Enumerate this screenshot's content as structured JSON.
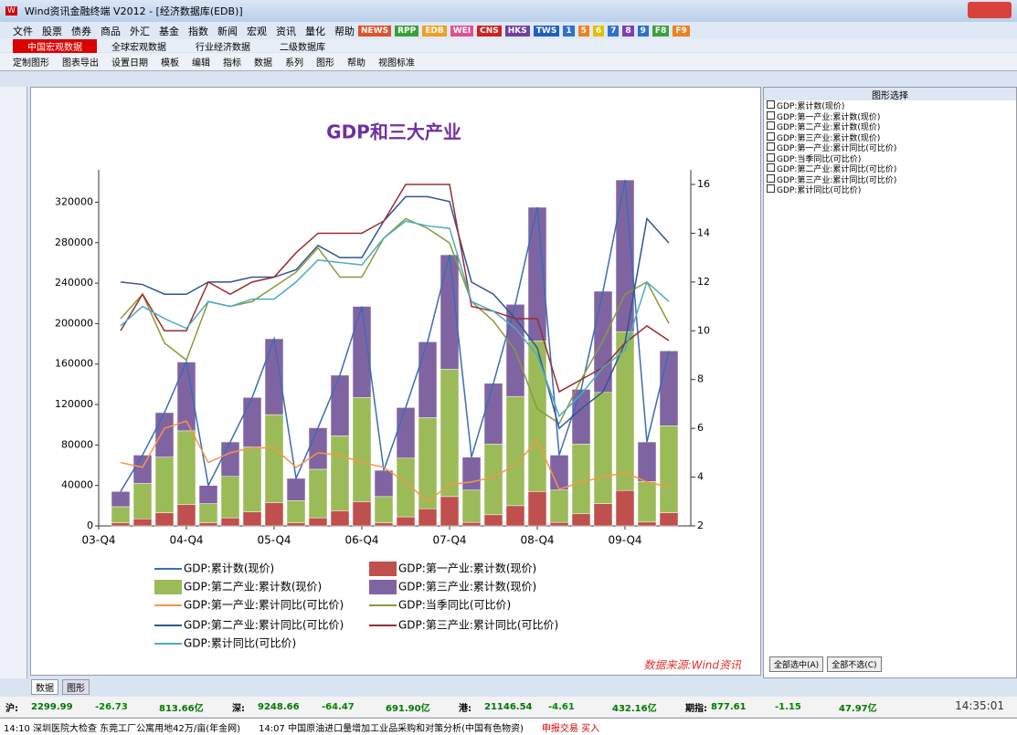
{
  "window": {
    "title": "Wind资讯金融终端 V2012 - [经济数据库(EDB)]"
  },
  "menu": [
    "文件",
    "股票",
    "债券",
    "商品",
    "外汇",
    "基金",
    "指数",
    "新闻",
    "宏观",
    "资讯",
    "量化",
    "帮助"
  ],
  "quick_buttons": [
    "NEWS",
    "RPP",
    "EDB",
    "WEI",
    "CNS",
    "HKS",
    "TWS",
    "1",
    "5",
    "6",
    "7",
    "8",
    "9",
    "F8",
    "F9"
  ],
  "tabs": [
    "中国宏观数据",
    "全球宏观数据",
    "行业经济数据",
    "二级数据库"
  ],
  "toolbar": [
    "定制图形",
    "图表导出",
    "设置日期",
    "模板",
    "编辑",
    "指标",
    "数据",
    "系列",
    "图形",
    "帮助",
    "视图标准"
  ],
  "chart_data": {
    "type": "bar",
    "title": "GDP和三大产业",
    "source": "数据来源:Wind资讯",
    "categories": [
      "03-Q4",
      null,
      null,
      null,
      "04-Q4",
      null,
      null,
      null,
      "05-Q4",
      null,
      null,
      null,
      "06-Q4",
      null,
      null,
      null,
      "07-Q4",
      null,
      null,
      null,
      "08-Q4",
      null,
      null,
      null,
      "09-Q4",
      null,
      null
    ],
    "ylim": [
      0,
      352000
    ],
    "yticks": [
      0,
      40000,
      80000,
      120000,
      160000,
      200000,
      240000,
      280000,
      320000
    ],
    "y2lim": [
      2,
      16.6
    ],
    "y2ticks": [
      2,
      4,
      6,
      8,
      10,
      12,
      14,
      16
    ],
    "series": [
      {
        "name": "GDP:累计数(现价)",
        "type": "line",
        "color": "#3a6db5",
        "values": [
          null,
          34000,
          70000,
          112000,
          162000,
          40000,
          83000,
          127000,
          185000,
          47000,
          97000,
          149000,
          217000,
          55000,
          117000,
          182000,
          268000,
          68000,
          141000,
          219000,
          315000,
          70000,
          135000,
          232000,
          342000,
          83000,
          173000
        ]
      },
      {
        "name": "GDP:第一产业:累计数(现价)",
        "type": "bar",
        "color": "#c0504d",
        "values": [
          null,
          3000,
          7000,
          13000,
          21000,
          3000,
          8000,
          14000,
          23000,
          3000,
          8000,
          15000,
          24000,
          3000,
          9000,
          17000,
          29000,
          3500,
          11000,
          20000,
          34000,
          3500,
          12000,
          22000,
          35000,
          3800,
          13000
        ]
      },
      {
        "name": "GDP:第二产业:累计数(现价)",
        "type": "bar",
        "color": "#9bbb59",
        "values": [
          null,
          16000,
          35000,
          55000,
          73000,
          19000,
          41000,
          64000,
          87000,
          22000,
          48000,
          74000,
          103000,
          26000,
          58000,
          90000,
          126000,
          32000,
          70000,
          108000,
          149000,
          32000,
          69000,
          110000,
          157000,
          40000,
          86000
        ]
      },
      {
        "name": "GDP:第三产业:累计数(现价)",
        "type": "bar",
        "color": "#8064a2",
        "values": [
          null,
          15000,
          28000,
          44000,
          68000,
          18000,
          34000,
          49000,
          75000,
          22000,
          41000,
          60000,
          90000,
          26000,
          50000,
          75000,
          113000,
          32500,
          60000,
          91000,
          132000,
          34500,
          54000,
          100000,
          150000,
          39200,
          74000
        ]
      },
      {
        "name": "GDP:第一产业:累计同比(可比价)",
        "type": "line",
        "axis": "y2",
        "color": "#f79646",
        "values": [
          null,
          4.6,
          4.4,
          6.0,
          6.3,
          4.6,
          5.0,
          5.2,
          5.2,
          4.4,
          5.0,
          4.9,
          4.6,
          4.4,
          3.8,
          3.0,
          3.7,
          3.8,
          4.0,
          4.5,
          5.5,
          3.5,
          3.8,
          4.0,
          4.2,
          3.8,
          3.6
        ]
      },
      {
        "name": "GDP:当季同比(可比价)",
        "type": "line",
        "axis": "y2",
        "color": "#8a9a3a",
        "values": [
          null,
          10.5,
          11.5,
          9.5,
          8.8,
          11.2,
          11.0,
          11.2,
          11.8,
          12.4,
          13.4,
          12.2,
          12.2,
          13.8,
          14.6,
          14.2,
          13.6,
          11.2,
          10.4,
          9.2,
          6.8,
          6.2,
          8.0,
          9.6,
          11.5,
          12.0,
          10.3
        ]
      },
      {
        "name": "GDP:第二产业:累计同比(可比价)",
        "type": "line",
        "axis": "y2",
        "color": "#2f5597",
        "values": [
          null,
          12.0,
          11.9,
          11.5,
          11.5,
          12.0,
          12.0,
          12.2,
          12.2,
          12.5,
          13.5,
          13.0,
          13.0,
          14.5,
          15.5,
          15.5,
          15.3,
          12.0,
          11.5,
          10.5,
          9.3,
          6.0,
          6.8,
          7.5,
          9.5,
          14.6,
          13.6
        ]
      },
      {
        "name": "GDP:第三产业:累计同比(可比价)",
        "type": "line",
        "axis": "y2",
        "color": "#9b2d30",
        "values": [
          null,
          10.0,
          11.5,
          10.0,
          10.0,
          12.0,
          11.5,
          12.0,
          12.2,
          13.2,
          14.0,
          14.0,
          14.0,
          14.5,
          16.0,
          16.0,
          16.0,
          11.0,
          10.8,
          10.5,
          10.5,
          7.5,
          8.0,
          8.5,
          9.5,
          10.2,
          9.6
        ]
      },
      {
        "name": "GDP:累计同比(可比价)",
        "type": "line",
        "axis": "y2",
        "color": "#4bacc6",
        "values": [
          null,
          10.2,
          11.0,
          10.5,
          10.1,
          11.2,
          11.0,
          11.3,
          11.3,
          12.0,
          12.9,
          12.8,
          12.7,
          13.8,
          14.5,
          14.3,
          14.2,
          11.2,
          10.8,
          10.1,
          9.0,
          6.5,
          7.4,
          8.5,
          9.2,
          12.0,
          11.2
        ]
      }
    ]
  },
  "side_panel": {
    "title": "图形选择",
    "items": [
      "GDP:累计数(现价)",
      "GDP:第一产业:累计数(现价)",
      "GDP:第二产业:累计数(现价)",
      "GDP:第三产业:累计数(现价)",
      "GDP:第一产业:累计同比(可比价)",
      "GDP:当季同比(可比价)",
      "GDP:第二产业:累计同比(可比价)",
      "GDP:第三产业:累计同比(可比价)",
      "GDP:累计同比(可比价)"
    ],
    "buttons": [
      "全部选中(A)",
      "全部不选(C)"
    ]
  },
  "bottom_tabs": [
    "数据",
    "图形"
  ],
  "status_bar": {
    "quotes": [
      [
        "沪:",
        "2299.99",
        "-26.73",
        "813.66亿"
      ],
      [
        "深:",
        "9248.66",
        "-64.47",
        "691.90亿"
      ],
      [
        "港:",
        "21146.54",
        "-4.61",
        "432.16亿"
      ],
      [
        "期指:",
        "877.61",
        "-1.15",
        "47.97亿"
      ]
    ],
    "time": "14:35:01",
    "news": [
      "14:10 深圳医院大检查 东莞工厂公寓用地42万/亩(年金网)",
      "14:07 中国原油进口量增加工业品采购和对策分析(中国有色物资)"
    ],
    "trade": "申报交易 买入"
  }
}
